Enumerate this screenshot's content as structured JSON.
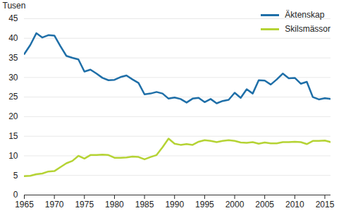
{
  "chart_data": {
    "type": "line",
    "y_label": "Tusen",
    "x": [
      1965,
      1966,
      1967,
      1968,
      1969,
      1970,
      1971,
      1972,
      1973,
      1974,
      1975,
      1976,
      1977,
      1978,
      1979,
      1980,
      1981,
      1982,
      1983,
      1984,
      1985,
      1986,
      1987,
      1988,
      1989,
      1990,
      1991,
      1992,
      1993,
      1994,
      1995,
      1996,
      1997,
      1998,
      1999,
      2000,
      2001,
      2002,
      2003,
      2004,
      2005,
      2006,
      2007,
      2008,
      2009,
      2010,
      2011,
      2012,
      2013,
      2014,
      2015,
      2016
    ],
    "series": [
      {
        "name": "Äktenskap",
        "color": "#1f6fa8",
        "values": [
          36.0,
          38.3,
          41.3,
          40.2,
          40.8,
          40.7,
          38.0,
          35.5,
          35.0,
          34.6,
          31.5,
          32.0,
          31.0,
          29.9,
          29.3,
          29.4,
          30.1,
          30.5,
          29.5,
          28.6,
          25.7,
          25.9,
          26.3,
          25.9,
          24.6,
          24.9,
          24.5,
          23.6,
          24.6,
          24.8,
          23.7,
          24.5,
          23.4,
          24.0,
          24.3,
          26.1,
          24.8,
          27.0,
          25.9,
          29.3,
          29.2,
          28.2,
          29.5,
          31.0,
          29.8,
          29.9,
          28.4,
          28.9,
          25.0,
          24.4,
          24.7,
          24.5
        ]
      },
      {
        "name": "Skilsmässor",
        "color": "#b5d334",
        "values": [
          4.8,
          4.9,
          5.3,
          5.5,
          6.0,
          6.1,
          7.1,
          8.1,
          8.7,
          10.0,
          9.3,
          10.2,
          10.2,
          10.3,
          10.2,
          9.5,
          9.5,
          9.6,
          9.8,
          9.7,
          9.1,
          9.7,
          10.2,
          12.2,
          14.4,
          13.1,
          12.8,
          13.0,
          12.8,
          13.6,
          14.0,
          13.8,
          13.5,
          13.8,
          14.0,
          13.8,
          13.4,
          13.3,
          13.5,
          13.1,
          13.4,
          13.2,
          13.2,
          13.5,
          13.5,
          13.6,
          13.5,
          13.0,
          13.8,
          13.8,
          13.9,
          13.5
        ]
      }
    ],
    "xlim": [
      1965,
      2016
    ],
    "xticks": [
      1965,
      1970,
      1975,
      1980,
      1985,
      1990,
      1995,
      2000,
      2005,
      2010,
      2015
    ],
    "ylim": [
      0,
      45
    ],
    "yticks": [
      0,
      5,
      10,
      15,
      20,
      25,
      30,
      35,
      40,
      45
    ],
    "grid": "y",
    "legend": "upper right"
  }
}
